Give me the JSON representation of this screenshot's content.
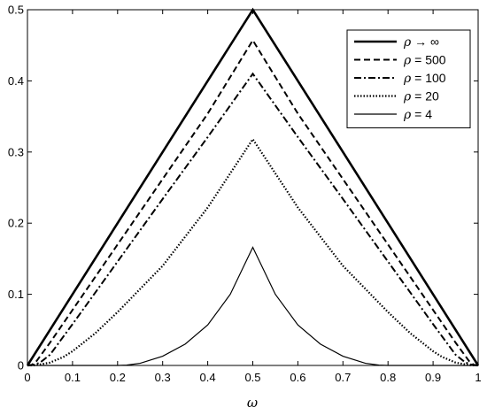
{
  "chart_data": {
    "type": "line",
    "title": "",
    "xlabel": "ω",
    "ylabel": "",
    "xlim": [
      0,
      1
    ],
    "ylim": [
      0,
      0.5
    ],
    "xticks": [
      0,
      0.1,
      0.2,
      0.3,
      0.4,
      0.5,
      0.6,
      0.7,
      0.8,
      0.9,
      1
    ],
    "xtick_labels": [
      "0",
      "0.1",
      "0.2",
      "0.3",
      "0.4",
      "0.5",
      "0.6",
      "0.7",
      "0.8",
      "0.9",
      "1"
    ],
    "yticks": [
      0,
      0.1,
      0.2,
      0.3,
      0.4,
      0.5
    ],
    "ytick_labels": [
      "0",
      "0.1",
      "0.2",
      "0.3",
      "0.4",
      "0.5"
    ],
    "grid": false,
    "legend_position": "top-right",
    "series": [
      {
        "name_symbol": "ρ",
        "name_rest": " → ∞",
        "style": "solid-thick",
        "x": [
          0,
          0.5,
          1
        ],
        "y": [
          0,
          0.5,
          0
        ]
      },
      {
        "name_symbol": "ρ",
        "name_rest": " = 500",
        "style": "dashed",
        "x": [
          0,
          0.01,
          0.02,
          0.05,
          0.1,
          0.2,
          0.3,
          0.4,
          0.5,
          0.6,
          0.7,
          0.8,
          0.9,
          0.95,
          0.98,
          0.99,
          1
        ],
        "y": [
          0,
          0.001,
          0.006,
          0.032,
          0.078,
          0.17,
          0.262,
          0.354,
          0.457,
          0.354,
          0.262,
          0.17,
          0.078,
          0.032,
          0.006,
          0.001,
          0
        ]
      },
      {
        "name_symbol": "ρ",
        "name_rest": " = 100",
        "style": "dash-dot",
        "x": [
          0,
          0.01,
          0.02,
          0.03,
          0.05,
          0.1,
          0.2,
          0.3,
          0.4,
          0.5,
          0.6,
          0.7,
          0.8,
          0.9,
          0.95,
          0.97,
          0.98,
          0.99,
          1
        ],
        "y": [
          0,
          0.0005,
          0.002,
          0.005,
          0.015,
          0.058,
          0.146,
          0.234,
          0.321,
          0.41,
          0.321,
          0.234,
          0.146,
          0.058,
          0.015,
          0.005,
          0.002,
          0.0005,
          0
        ]
      },
      {
        "name_symbol": "ρ",
        "name_rest": " = 20",
        "style": "dotted",
        "x": [
          0,
          0.02,
          0.05,
          0.08,
          0.1,
          0.15,
          0.2,
          0.3,
          0.4,
          0.5,
          0.6,
          0.7,
          0.8,
          0.85,
          0.9,
          0.92,
          0.95,
          0.98,
          1
        ],
        "y": [
          0,
          0.0005,
          0.004,
          0.012,
          0.02,
          0.045,
          0.075,
          0.14,
          0.222,
          0.318,
          0.222,
          0.14,
          0.075,
          0.045,
          0.02,
          0.012,
          0.004,
          0.0005,
          0
        ]
      },
      {
        "name_symbol": "ρ",
        "name_rest": " = 4",
        "style": "solid-thin",
        "x": [
          0,
          0.1,
          0.2,
          0.22,
          0.25,
          0.3,
          0.35,
          0.4,
          0.45,
          0.5,
          0.55,
          0.6,
          0.65,
          0.7,
          0.75,
          0.78,
          0.8,
          0.9,
          1
        ],
        "y": [
          0,
          0,
          0,
          0.0005,
          0.003,
          0.013,
          0.03,
          0.057,
          0.1,
          0.166,
          0.1,
          0.057,
          0.03,
          0.013,
          0.003,
          0.0005,
          0,
          0,
          0
        ]
      }
    ]
  }
}
